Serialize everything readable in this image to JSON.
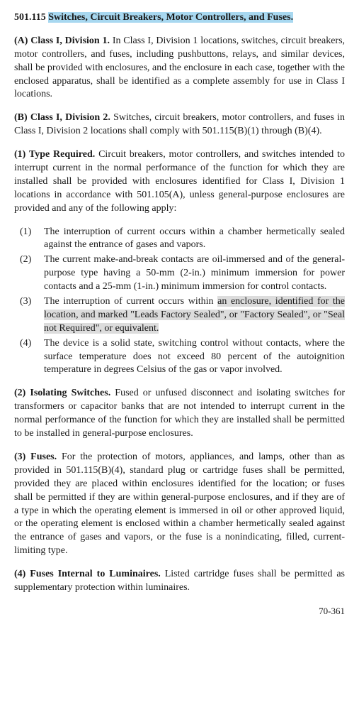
{
  "section": {
    "number": "501.115",
    "title": "Switches, Circuit Breakers, Motor Controllers, and Fuses."
  },
  "paraA": {
    "heading": "(A) Class I, Division 1.",
    "body": "In Class I, Division 1 locations, switches, circuit breakers, motor controllers, and fuses, including pushbuttons, relays, and similar devices, shall be provided with enclosures, and the enclosure in each case, together with the enclosed apparatus, shall be identified as a complete assembly for use in Class I locations."
  },
  "paraB": {
    "heading": "(B) Class I, Division 2.",
    "body": "Switches, circuit breakers, motor controllers, and fuses in Class I, Division 2 locations shall comply with 501.115(B)(1) through (B)(4)."
  },
  "para1": {
    "heading": "(1) Type Required.",
    "body": "Circuit breakers, motor controllers, and switches intended to interrupt current in the normal performance of the function for which they are installed shall be provided with enclosures identified for Class I, Division 1 locations in accordance with 501.105(A), unless general-purpose enclosures are provided and any of the following apply:"
  },
  "list1": {
    "items": [
      {
        "num": "(1)",
        "text": "The interruption of current occurs within a chamber hermetically sealed against the entrance of gases and vapors."
      },
      {
        "num": "(2)",
        "text": "The current make-and-break contacts are oil-immersed and of the general-purpose type having a 50-mm (2-in.) minimum immersion for power contacts and a 25-mm (1-in.) minimum immersion for control contacts."
      },
      {
        "num": "(3)",
        "pre": "The interruption of current occurs within ",
        "hl": "an enclosure, identified for the location, and marked \"Leads Factory Sealed\", or \"Factory Sealed\", or \"Seal not Required\", or equivalent."
      },
      {
        "num": "(4)",
        "text": "The device is a solid state, switching control without contacts, where the surface temperature does not exceed 80 percent of the autoignition temperature in degrees Celsius of the gas or vapor involved."
      }
    ]
  },
  "para2": {
    "heading": "(2) Isolating Switches.",
    "body": "Fused or unfused disconnect and isolating switches for transformers or capacitor banks that are not intended to interrupt current in the normal performance of the function for which they are installed shall be permitted to be installed in general-purpose enclosures."
  },
  "para3": {
    "heading": "(3) Fuses.",
    "body": "For the protection of motors, appliances, and lamps, other than as provided in 501.115(B)(4), standard plug or cartridge fuses shall be permitted, provided they are placed within enclosures identified for the location; or fuses shall be permitted if they are within general-purpose enclosures, and if they are of a type in which the operating element is immersed in oil or other approved liquid, or the operating element is enclosed within a chamber hermetically sealed against the entrance of gases and vapors, or the fuse is a nonindicating, filled, current-limiting type."
  },
  "para4": {
    "heading": "(4) Fuses Internal to Luminaires.",
    "body": "Listed cartridge fuses shall be permitted as supplementary protection within luminaires."
  },
  "pageNumber": "70-361"
}
